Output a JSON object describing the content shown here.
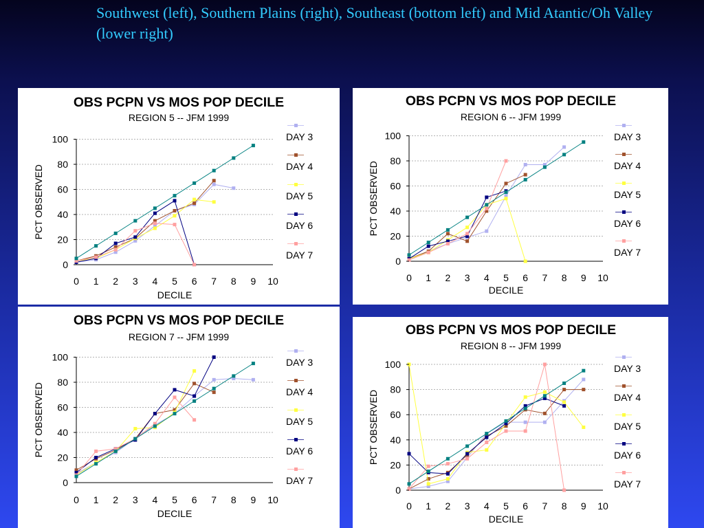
{
  "header": {
    "caption": "Southwest (left), Southern Plains (right), Southeast (bottom left) and Mid Atantic/Oh Valley (lower right)"
  },
  "colors": {
    "day3": "#b0b0f0",
    "day4": "#a0522d",
    "day5": "#ffff40",
    "day6": "#000080",
    "day7": "#ffa0a0",
    "reference": "#008080"
  },
  "chart_data": [
    {
      "type": "line",
      "title": "OBS PCPN VS MOS POP DECILE",
      "subtitle": "REGION 5 -- JFM 1999",
      "xlabel": "DECILE",
      "ylabel": "PCT OBSERVED",
      "xlim": [
        0,
        10
      ],
      "ylim": [
        0,
        100
      ],
      "xticks": [
        0,
        1,
        2,
        3,
        4,
        5,
        6,
        7,
        8,
        9,
        10
      ],
      "yticks": [
        0,
        20,
        40,
        60,
        80,
        100
      ],
      "grid": "horizontal",
      "legend_position": "right",
      "reference": {
        "x": [
          0,
          1,
          2,
          3,
          4,
          5,
          6,
          7,
          8,
          9
        ],
        "y": [
          5,
          15,
          25,
          35,
          45,
          55,
          65,
          75,
          85,
          95
        ]
      },
      "series": [
        {
          "name": "DAY 3",
          "key": "day3",
          "x": [
            0,
            1,
            2,
            3,
            4,
            5,
            6,
            7,
            8
          ],
          "y": [
            2,
            4,
            10,
            19,
            31,
            43,
            48,
            64,
            61
          ]
        },
        {
          "name": "DAY 4",
          "key": "day4",
          "x": [
            0,
            1,
            2,
            3,
            4,
            5,
            6,
            7
          ],
          "y": [
            3,
            7,
            14,
            21,
            35,
            43,
            49,
            67
          ]
        },
        {
          "name": "DAY 5",
          "key": "day5",
          "x": [
            0,
            1,
            2,
            3,
            4,
            5,
            6,
            7
          ],
          "y": [
            3,
            5,
            12,
            21,
            29,
            39,
            52,
            50
          ]
        },
        {
          "name": "DAY 6",
          "key": "day6",
          "x": [
            0,
            1,
            2,
            3,
            4,
            5,
            6
          ],
          "y": [
            2,
            5,
            17,
            22,
            41,
            51,
            0
          ]
        },
        {
          "name": "DAY 7",
          "key": "day7",
          "x": [
            0,
            1,
            2,
            3,
            4,
            5,
            6
          ],
          "y": [
            3,
            6,
            12,
            27,
            33,
            32,
            0
          ]
        }
      ]
    },
    {
      "type": "line",
      "title": "OBS PCPN VS MOS POP DECILE",
      "subtitle": "REGION 6 -- JFM 1999",
      "xlabel": "DECILE",
      "ylabel": "PCT OBSERVED",
      "xlim": [
        0,
        10
      ],
      "ylim": [
        0,
        100
      ],
      "xticks": [
        0,
        1,
        2,
        3,
        4,
        5,
        6,
        7,
        8,
        9,
        10
      ],
      "yticks": [
        0,
        20,
        40,
        60,
        80,
        100
      ],
      "grid": "horizontal",
      "legend_position": "right",
      "reference": {
        "x": [
          0,
          1,
          2,
          3,
          4,
          5,
          6,
          7,
          8,
          9
        ],
        "y": [
          5,
          15,
          25,
          35,
          45,
          55,
          65,
          75,
          85,
          95
        ]
      },
      "series": [
        {
          "name": "DAY 3",
          "key": "day3",
          "x": [
            0,
            1,
            2,
            3,
            4,
            5,
            6,
            7,
            8
          ],
          "y": [
            1,
            8,
            14,
            19,
            24,
            52,
            77,
            77,
            91
          ]
        },
        {
          "name": "DAY 4",
          "key": "day4",
          "x": [
            0,
            1,
            2,
            3,
            4,
            5,
            6
          ],
          "y": [
            2,
            8,
            22,
            16,
            40,
            62,
            69
          ]
        },
        {
          "name": "DAY 5",
          "key": "day5",
          "x": [
            0,
            1,
            2,
            3,
            4,
            5,
            6
          ],
          "y": [
            2,
            7,
            17,
            27,
            45,
            50,
            0
          ]
        },
        {
          "name": "DAY 6",
          "key": "day6",
          "x": [
            0,
            1,
            2,
            3,
            4,
            5
          ],
          "y": [
            2,
            12,
            16,
            20,
            51,
            56
          ]
        },
        {
          "name": "DAY 7",
          "key": "day7",
          "x": [
            0,
            1,
            2,
            3,
            4,
            5
          ],
          "y": [
            1,
            7,
            14,
            22,
            42,
            80
          ]
        }
      ]
    },
    {
      "type": "line",
      "title": "OBS PCPN VS MOS POP DECILE",
      "subtitle": "REGION 7 -- JFM 1999",
      "xlabel": "DECILE",
      "ylabel": "PCT OBSERVED",
      "xlim": [
        0,
        10
      ],
      "ylim": [
        0,
        100
      ],
      "xticks": [
        0,
        1,
        2,
        3,
        4,
        5,
        6,
        7,
        8,
        9,
        10
      ],
      "yticks": [
        0,
        20,
        40,
        60,
        80,
        100
      ],
      "grid": "horizontal",
      "legend_position": "right",
      "reference": {
        "x": [
          0,
          1,
          2,
          3,
          4,
          5,
          6,
          7,
          8,
          9
        ],
        "y": [
          5,
          15,
          25,
          35,
          45,
          55,
          65,
          75,
          85,
          95
        ]
      },
      "series": [
        {
          "name": "DAY 3",
          "key": "day3",
          "x": [
            0,
            1,
            2,
            3,
            4,
            5,
            6,
            7,
            8,
            9
          ],
          "y": [
            7,
            16,
            24,
            35,
            46,
            55,
            69,
            82,
            83,
            82
          ]
        },
        {
          "name": "DAY 4",
          "key": "day4",
          "x": [
            0,
            1,
            2,
            3,
            4,
            5,
            6,
            7
          ],
          "y": [
            10,
            19,
            26,
            35,
            55,
            58,
            79,
            72
          ]
        },
        {
          "name": "DAY 5",
          "key": "day5",
          "x": [
            0,
            1,
            2,
            3,
            4,
            5,
            6
          ],
          "y": [
            6,
            16,
            25,
            43,
            44,
            56,
            89
          ]
        },
        {
          "name": "DAY 6",
          "key": "day6",
          "x": [
            0,
            1,
            2,
            3,
            4,
            5,
            6,
            7
          ],
          "y": [
            8,
            20,
            27,
            34,
            55,
            74,
            69,
            100
          ]
        },
        {
          "name": "DAY 7",
          "key": "day7",
          "x": [
            0,
            1,
            2,
            3,
            4,
            5,
            6
          ],
          "y": [
            6,
            25,
            27,
            35,
            47,
            68,
            50
          ]
        }
      ]
    },
    {
      "type": "line",
      "title": "OBS PCPN VS MOS POP DECILE",
      "subtitle": "REGION 8 -- JFM 1999",
      "xlabel": "DECILE",
      "ylabel": "PCT OBSERVED",
      "xlim": [
        0,
        10
      ],
      "ylim": [
        0,
        100
      ],
      "xticks": [
        0,
        1,
        2,
        3,
        4,
        5,
        6,
        7,
        8,
        9,
        10
      ],
      "yticks": [
        0,
        20,
        40,
        60,
        80,
        100
      ],
      "grid": "horizontal",
      "legend_position": "right",
      "reference": {
        "x": [
          0,
          1,
          2,
          3,
          4,
          5,
          6,
          7,
          8,
          9
        ],
        "y": [
          5,
          15,
          25,
          35,
          45,
          55,
          65,
          75,
          85,
          95
        ]
      },
      "series": [
        {
          "name": "DAY 3",
          "key": "day3",
          "x": [
            0,
            1,
            2,
            3,
            4,
            5,
            6,
            7,
            8,
            9
          ],
          "y": [
            1,
            3,
            7,
            26,
            45,
            54,
            54,
            54,
            71,
            88
          ]
        },
        {
          "name": "DAY 4",
          "key": "day4",
          "x": [
            0,
            1,
            2,
            3,
            4,
            5,
            6,
            7,
            8,
            9
          ],
          "y": [
            1,
            9,
            14,
            28,
            43,
            51,
            64,
            61,
            80,
            80
          ]
        },
        {
          "name": "DAY 5",
          "key": "day5",
          "x": [
            0,
            1,
            2,
            3,
            4,
            5,
            6,
            7,
            8,
            9
          ],
          "y": [
            100,
            5,
            9,
            30,
            32,
            53,
            74,
            78,
            70,
            50
          ]
        },
        {
          "name": "DAY 6",
          "key": "day6",
          "x": [
            0,
            1,
            2,
            3,
            4,
            5,
            6,
            7,
            8
          ],
          "y": [
            29,
            14,
            13,
            29,
            42,
            53,
            67,
            73,
            67
          ]
        },
        {
          "name": "DAY 7",
          "key": "day7",
          "x": [
            0,
            1,
            2,
            3,
            4,
            5,
            6,
            7,
            8
          ],
          "y": [
            1,
            19,
            21,
            25,
            38,
            47,
            47,
            100,
            0
          ]
        }
      ]
    }
  ]
}
